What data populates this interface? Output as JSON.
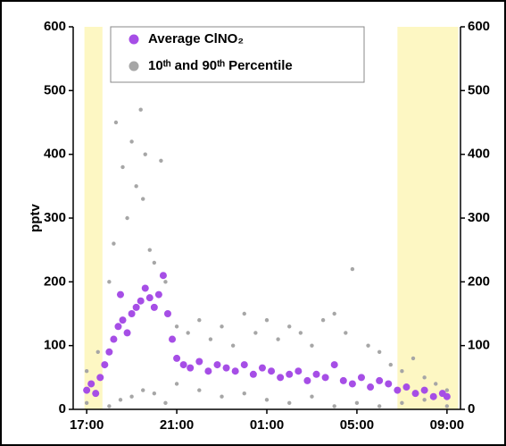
{
  "chart_data": {
    "type": "scatter",
    "y_label": "pptv",
    "xlim": [
      -0.6,
      16.6
    ],
    "xticks": [
      {
        "value": 0,
        "label": "17:00"
      },
      {
        "value": 4,
        "label": "21:00"
      },
      {
        "value": 8,
        "label": "01:00"
      },
      {
        "value": 12,
        "label": "05:00"
      },
      {
        "value": 16,
        "label": "09:00"
      }
    ],
    "ylim": [
      0,
      600
    ],
    "yticks": [
      0,
      100,
      200,
      300,
      400,
      500,
      600
    ],
    "shaded_regions": [
      [
        -0.1,
        0.7
      ],
      [
        13.8,
        16.5
      ]
    ],
    "shade_color": "#fdf7c3",
    "series": [
      {
        "name": "10ᵗʰ and 90ᵗʰ Percentile",
        "color": "#a6a6a6",
        "x": [
          0,
          0.5,
          1.0,
          1.2,
          1.3,
          1.6,
          1.8,
          2.0,
          2.2,
          2.4,
          2.5,
          2.6,
          2.8,
          3.0,
          3.3,
          3.5,
          4.0,
          4.5,
          5.0,
          5.5,
          6.0,
          6.5,
          7.0,
          7.5,
          8.0,
          8.5,
          9.0,
          9.5,
          10.0,
          10.5,
          11.0,
          11.5,
          11.8,
          12.5,
          13.0,
          13.5,
          14.0,
          14.5,
          15.0,
          15.5,
          16.0,
          0,
          1,
          1.5,
          2,
          2.5,
          3,
          3.5,
          4,
          5,
          6,
          7,
          8,
          9,
          10,
          11,
          12,
          13,
          14,
          15,
          16
        ],
        "values": [
          60,
          90,
          200,
          260,
          450,
          380,
          300,
          420,
          350,
          470,
          330,
          400,
          250,
          230,
          390,
          200,
          130,
          120,
          140,
          110,
          130,
          100,
          150,
          120,
          140,
          110,
          130,
          120,
          100,
          140,
          150,
          120,
          220,
          100,
          90,
          70,
          60,
          80,
          50,
          40,
          30,
          10,
          5,
          15,
          20,
          30,
          25,
          10,
          40,
          30,
          20,
          25,
          15,
          10,
          20,
          5,
          10,
          5,
          10,
          15,
          5
        ]
      },
      {
        "name": "Average ClNO₂",
        "color": "#a64ee6",
        "x": [
          0,
          0.2,
          0.4,
          0.6,
          0.8,
          1.0,
          1.2,
          1.4,
          1.5,
          1.6,
          1.8,
          2.0,
          2.2,
          2.4,
          2.6,
          2.8,
          3.0,
          3.2,
          3.4,
          3.6,
          3.8,
          4.0,
          4.3,
          4.6,
          5.0,
          5.4,
          5.8,
          6.2,
          6.6,
          7.0,
          7.4,
          7.8,
          8.2,
          8.6,
          9.0,
          9.4,
          9.8,
          10.2,
          10.6,
          11.0,
          11.4,
          11.8,
          12.2,
          12.6,
          13.0,
          13.4,
          13.8,
          14.2,
          14.6,
          15.0,
          15.4,
          15.8,
          16.0
        ],
        "values": [
          30,
          40,
          25,
          50,
          70,
          90,
          110,
          130,
          180,
          140,
          120,
          150,
          160,
          170,
          190,
          175,
          160,
          180,
          210,
          150,
          110,
          80,
          70,
          65,
          75,
          60,
          70,
          65,
          60,
          70,
          55,
          65,
          60,
          50,
          55,
          60,
          45,
          55,
          50,
          70,
          45,
          40,
          50,
          35,
          45,
          40,
          30,
          35,
          25,
          30,
          20,
          25,
          20
        ]
      }
    ]
  }
}
